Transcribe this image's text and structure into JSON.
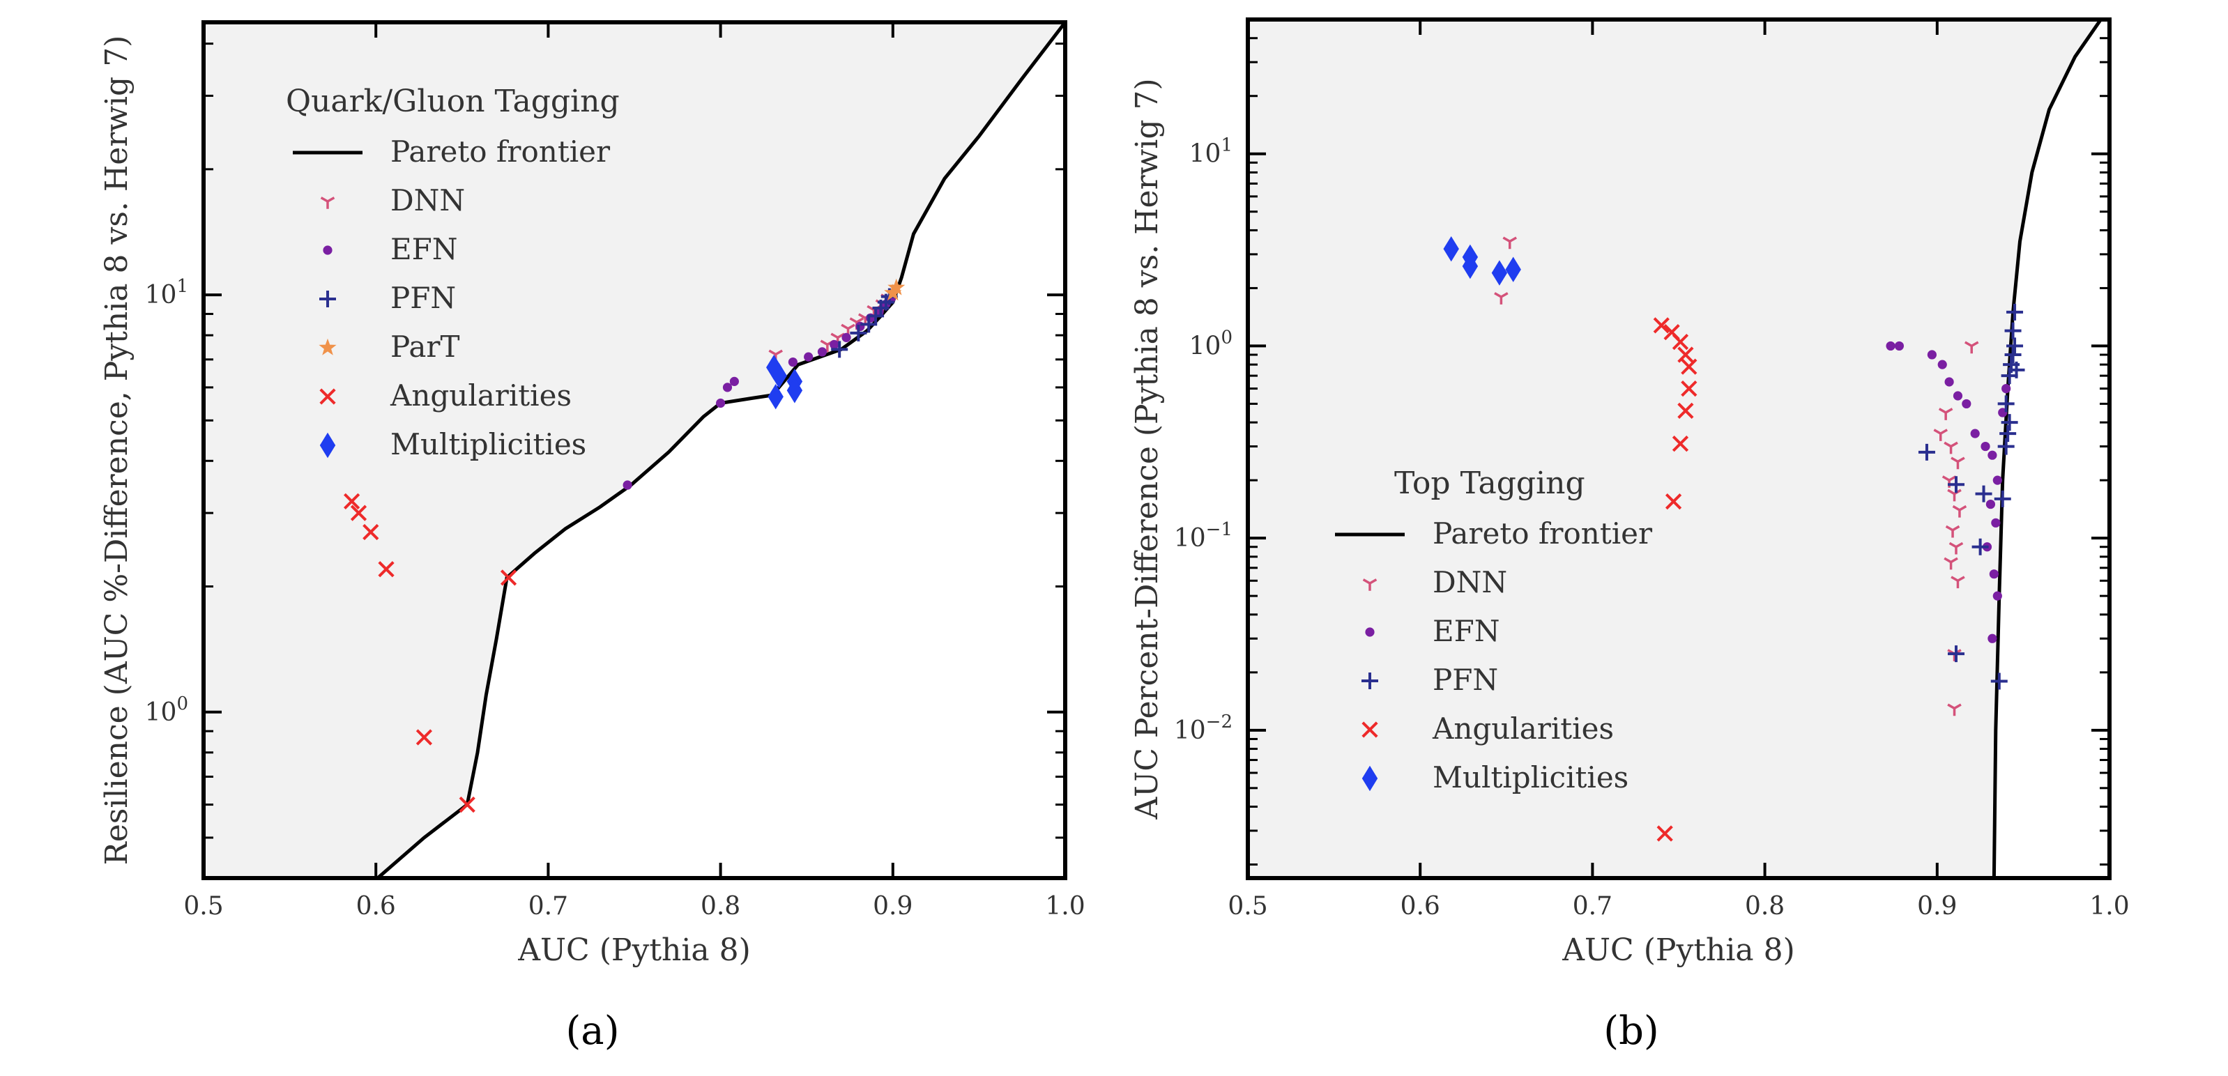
{
  "colors": {
    "background": "#f2f2f2",
    "frontier": "#000000",
    "DNN": "#d4527a",
    "EFN": "#7a1fa2",
    "PFN": "#2a2f8f",
    "ParT": "#f0924a",
    "Angularities": "#ee2a2a",
    "Multiplicities": "#1f3df0"
  },
  "chart_data": [
    {
      "type": "scatter",
      "panel_label": "(a)",
      "legend_title": "Quark/Gluon Tagging",
      "legend": [
        {
          "key": "frontier",
          "label": "Pareto frontier"
        },
        {
          "key": "DNN",
          "label": "DNN"
        },
        {
          "key": "EFN",
          "label": "EFN"
        },
        {
          "key": "PFN",
          "label": "PFN"
        },
        {
          "key": "ParT",
          "label": "ParT"
        },
        {
          "key": "Angularities",
          "label": "Angularities"
        },
        {
          "key": "Multiplicities",
          "label": "Multiplicities"
        }
      ],
      "xlabel": "AUC (Pythia 8)",
      "ylabel": "Resilience (AUC %-Difference, Pythia 8 vs. Herwig 7)",
      "xlim": [
        0.5,
        1.0
      ],
      "ylim": [
        0.4,
        45
      ],
      "yscale": "log",
      "xticks": [
        {
          "v": 0.5,
          "label": "0.5"
        },
        {
          "v": 0.6,
          "label": "0.6"
        },
        {
          "v": 0.7,
          "label": "0.7"
        },
        {
          "v": 0.8,
          "label": "0.8"
        },
        {
          "v": 0.9,
          "label": "0.9"
        },
        {
          "v": 1.0,
          "label": "1.0"
        }
      ],
      "yticks": [
        {
          "v": 1,
          "label": "10",
          "exp": "0"
        },
        {
          "v": 10,
          "label": "10",
          "exp": "1"
        }
      ],
      "frontier": [
        [
          0.601,
          0.4
        ],
        [
          0.628,
          0.5
        ],
        [
          0.653,
          0.6
        ],
        [
          0.659,
          0.8
        ],
        [
          0.664,
          1.1
        ],
        [
          0.67,
          1.5
        ],
        [
          0.676,
          2.1
        ],
        [
          0.692,
          2.4
        ],
        [
          0.71,
          2.75
        ],
        [
          0.73,
          3.1
        ],
        [
          0.748,
          3.5
        ],
        [
          0.77,
          4.2
        ],
        [
          0.79,
          5.1
        ],
        [
          0.8,
          5.5
        ],
        [
          0.818,
          5.65
        ],
        [
          0.83,
          5.75
        ],
        [
          0.845,
          6.8
        ],
        [
          0.87,
          7.4
        ],
        [
          0.885,
          8.2
        ],
        [
          0.893,
          8.9
        ],
        [
          0.9,
          9.6
        ],
        [
          0.905,
          11
        ],
        [
          0.912,
          14
        ],
        [
          0.93,
          19
        ],
        [
          0.95,
          24
        ],
        [
          0.975,
          33
        ],
        [
          1.0,
          45
        ]
      ],
      "series": [
        {
          "name": "DNN",
          "marker": "tri",
          "points": [
            [
              0.832,
              7.2
            ],
            [
              0.862,
              7.6
            ],
            [
              0.868,
              7.9
            ],
            [
              0.874,
              8.3
            ],
            [
              0.879,
              8.6
            ],
            [
              0.884,
              8.8
            ],
            [
              0.889,
              9.2
            ],
            [
              0.894,
              9.5
            ],
            [
              0.897,
              9.8
            ]
          ]
        },
        {
          "name": "EFN",
          "marker": "dot",
          "points": [
            [
              0.8,
              5.5
            ],
            [
              0.804,
              6.0
            ],
            [
              0.808,
              6.2
            ],
            [
              0.746,
              3.5
            ],
            [
              0.842,
              6.9
            ],
            [
              0.851,
              7.1
            ],
            [
              0.859,
              7.3
            ],
            [
              0.866,
              7.6
            ],
            [
              0.873,
              7.9
            ],
            [
              0.881,
              8.4
            ],
            [
              0.887,
              8.8
            ],
            [
              0.892,
              9.1
            ],
            [
              0.896,
              9.5
            ],
            [
              0.899,
              9.8
            ]
          ]
        },
        {
          "name": "PFN",
          "marker": "plus",
          "points": [
            [
              0.869,
              7.4
            ],
            [
              0.88,
              8.1
            ],
            [
              0.886,
              8.5
            ],
            [
              0.89,
              8.9
            ],
            [
              0.893,
              9.3
            ],
            [
              0.896,
              9.6
            ],
            [
              0.898,
              9.9
            ]
          ]
        },
        {
          "name": "ParT",
          "marker": "star",
          "points": [
            [
              0.9,
              10.1
            ],
            [
              0.902,
              10.4
            ]
          ]
        },
        {
          "name": "Angularities",
          "marker": "x",
          "points": [
            [
              0.586,
              3.2
            ],
            [
              0.59,
              3.0
            ],
            [
              0.597,
              2.7
            ],
            [
              0.606,
              2.2
            ],
            [
              0.628,
              0.87
            ],
            [
              0.653,
              0.6
            ],
            [
              0.677,
              2.1
            ]
          ]
        },
        {
          "name": "Multiplicities",
          "marker": "diamond",
          "points": [
            [
              0.831,
              6.7
            ],
            [
              0.834,
              6.4
            ],
            [
              0.843,
              6.2
            ],
            [
              0.832,
              5.7
            ],
            [
              0.843,
              5.9
            ]
          ]
        }
      ]
    },
    {
      "type": "scatter",
      "panel_label": "(b)",
      "legend_title": "Top Tagging",
      "legend": [
        {
          "key": "frontier",
          "label": "Pareto frontier"
        },
        {
          "key": "DNN",
          "label": "DNN"
        },
        {
          "key": "EFN",
          "label": "EFN"
        },
        {
          "key": "PFN",
          "label": "PFN"
        },
        {
          "key": "Angularities",
          "label": "Angularities"
        },
        {
          "key": "Multiplicities",
          "label": "Multiplicities"
        }
      ],
      "xlabel": "AUC (Pythia 8)",
      "ylabel": "AUC Percent-Difference (Pythia 8 vs. Herwig 7)",
      "xlim": [
        0.5,
        1.0
      ],
      "ylim": [
        0.0017,
        50
      ],
      "yscale": "log",
      "xticks": [
        {
          "v": 0.5,
          "label": "0.5"
        },
        {
          "v": 0.6,
          "label": "0.6"
        },
        {
          "v": 0.7,
          "label": "0.7"
        },
        {
          "v": 0.8,
          "label": "0.8"
        },
        {
          "v": 0.9,
          "label": "0.9"
        },
        {
          "v": 1.0,
          "label": "1.0"
        }
      ],
      "yticks": [
        {
          "v": 0.01,
          "label": "10",
          "exp": "−2"
        },
        {
          "v": 0.1,
          "label": "10",
          "exp": "−1"
        },
        {
          "v": 1,
          "label": "10",
          "exp": "0"
        },
        {
          "v": 10,
          "label": "10",
          "exp": "1"
        }
      ],
      "frontier": [
        [
          0.933,
          0.0017
        ],
        [
          0.934,
          0.01
        ],
        [
          0.936,
          0.05
        ],
        [
          0.938,
          0.2
        ],
        [
          0.941,
          0.6
        ],
        [
          0.944,
          1.5
        ],
        [
          0.948,
          3.5
        ],
        [
          0.955,
          8
        ],
        [
          0.965,
          17
        ],
        [
          0.98,
          32
        ],
        [
          0.995,
          50
        ]
      ],
      "series": [
        {
          "name": "DNN",
          "marker": "tri",
          "points": [
            [
              0.652,
              3.5
            ],
            [
              0.647,
              1.8
            ],
            [
              0.92,
              1.0
            ],
            [
              0.905,
              0.45
            ],
            [
              0.902,
              0.35
            ],
            [
              0.908,
              0.3
            ],
            [
              0.912,
              0.25
            ],
            [
              0.907,
              0.2
            ],
            [
              0.91,
              0.17
            ],
            [
              0.913,
              0.14
            ],
            [
              0.909,
              0.11
            ],
            [
              0.911,
              0.09
            ],
            [
              0.908,
              0.075
            ],
            [
              0.912,
              0.06
            ],
            [
              0.91,
              0.025
            ],
            [
              0.91,
              0.013
            ]
          ]
        },
        {
          "name": "EFN",
          "marker": "dot",
          "points": [
            [
              0.873,
              1.0
            ],
            [
              0.878,
              1.0
            ],
            [
              0.897,
              0.9
            ],
            [
              0.903,
              0.8
            ],
            [
              0.907,
              0.65
            ],
            [
              0.912,
              0.55
            ],
            [
              0.917,
              0.5
            ],
            [
              0.922,
              0.35
            ],
            [
              0.928,
              0.3
            ],
            [
              0.932,
              0.27
            ],
            [
              0.935,
              0.2
            ],
            [
              0.931,
              0.15
            ],
            [
              0.934,
              0.12
            ],
            [
              0.929,
              0.09
            ],
            [
              0.933,
              0.065
            ],
            [
              0.935,
              0.05
            ],
            [
              0.932,
              0.03
            ],
            [
              0.938,
              0.45
            ],
            [
              0.94,
              0.6
            ]
          ]
        },
        {
          "name": "PFN",
          "marker": "plus",
          "points": [
            [
              0.894,
              0.28
            ],
            [
              0.911,
              0.19
            ],
            [
              0.927,
              0.17
            ],
            [
              0.938,
              0.16
            ],
            [
              0.925,
              0.09
            ],
            [
              0.911,
              0.025
            ],
            [
              0.936,
              0.018
            ],
            [
              0.94,
              0.3
            ],
            [
              0.941,
              0.35
            ],
            [
              0.942,
              0.4
            ],
            [
              0.94,
              0.5
            ],
            [
              0.942,
              0.7
            ],
            [
              0.943,
              0.8
            ],
            [
              0.944,
              0.9
            ],
            [
              0.945,
              1.0
            ],
            [
              0.944,
              1.2
            ],
            [
              0.945,
              1.5
            ],
            [
              0.946,
              0.75
            ]
          ]
        },
        {
          "name": "Angularities",
          "marker": "x",
          "points": [
            [
              0.74,
              1.28
            ],
            [
              0.746,
              1.18
            ],
            [
              0.751,
              1.05
            ],
            [
              0.754,
              0.9
            ],
            [
              0.756,
              0.78
            ],
            [
              0.756,
              0.6
            ],
            [
              0.754,
              0.46
            ],
            [
              0.751,
              0.31
            ],
            [
              0.747,
              0.155
            ],
            [
              0.742,
              0.0029
            ]
          ]
        },
        {
          "name": "Multiplicities",
          "marker": "diamond",
          "points": [
            [
              0.618,
              3.2
            ],
            [
              0.629,
              2.9
            ],
            [
              0.629,
              2.6
            ],
            [
              0.646,
              2.4
            ],
            [
              0.654,
              2.5
            ]
          ]
        }
      ]
    }
  ]
}
